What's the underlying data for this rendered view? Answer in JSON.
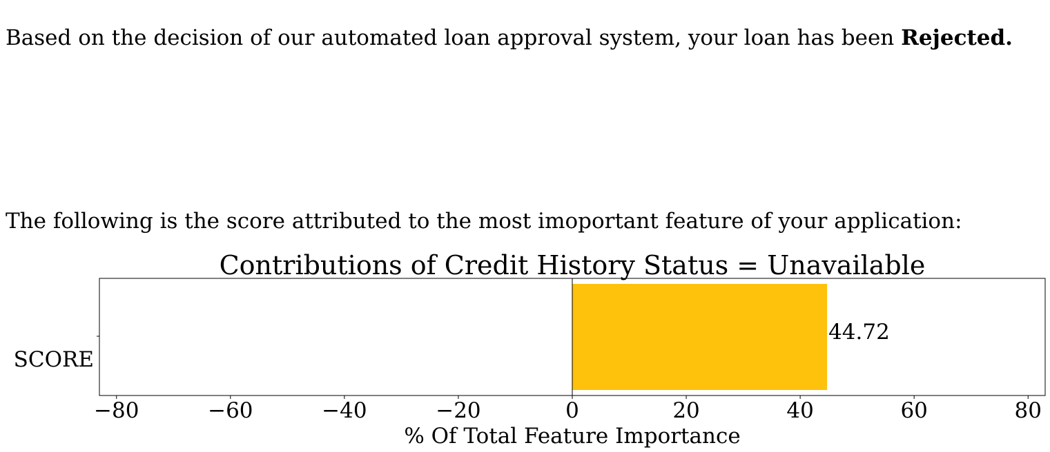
{
  "message": {
    "decision_prefix": "Based on the decision of our automated loan approval system, your loan has been",
    "decision_status": "Rejected.",
    "intro": "The following is the score attributed to the most imoportant feature of your application:"
  },
  "chart_data": {
    "type": "bar",
    "orientation": "horizontal",
    "title": "Contributions of Credit History Status = Unavailable",
    "xlabel": "% Of Total Feature Importance",
    "ylabel": "",
    "categories": [
      "SCORE"
    ],
    "values": [
      44.72
    ],
    "value_labels": [
      "44.72"
    ],
    "xlim": [
      -83,
      83
    ],
    "xticks": [
      -80,
      -60,
      -40,
      -20,
      0,
      20,
      40,
      60,
      80
    ],
    "xtick_labels": [
      "−80",
      "−60",
      "−40",
      "−20",
      "0",
      "20",
      "40",
      "60",
      "80"
    ],
    "bar_color": "#FEC10C",
    "grid": false,
    "zero_line": true
  }
}
